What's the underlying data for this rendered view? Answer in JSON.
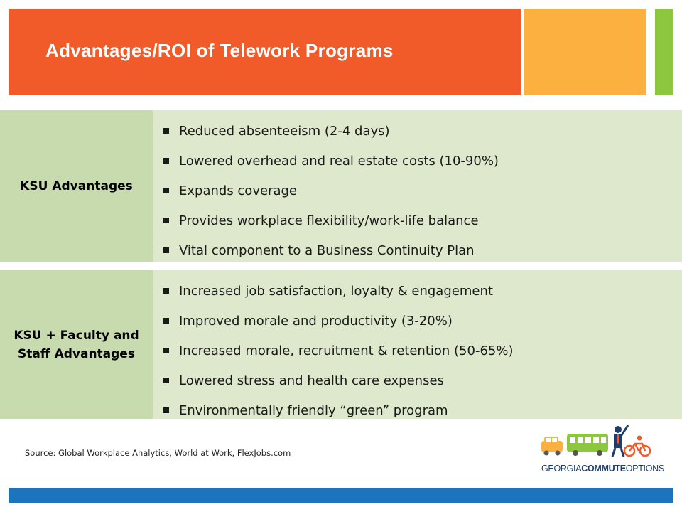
{
  "slide": {
    "title": "Advantages/ROI of Telework Programs",
    "colors": {
      "orange": "#f15a29",
      "yellow": "#fbb040",
      "green": "#8dc63f",
      "blue": "#1c75bc",
      "label_bg": "#c8dbae",
      "content_bg": "#dde8cc"
    }
  },
  "rows": [
    {
      "label": "KSU Advantages",
      "bullets": [
        "Reduced absenteeism (2-4 days)",
        "Lowered overhead and real estate costs (10-90%)",
        "Expands coverage",
        "Provides workplace flexibility/work-life balance",
        "Vital component to a Business Continuity Plan"
      ]
    },
    {
      "label": "KSU + Faculty and\nStaff Advantages",
      "bullets": [
        "Increased job satisfaction, loyalty & engagement",
        "Improved morale and productivity (3-20%)",
        "Increased morale, recruitment & retention (50-65%)",
        "Lowered stress and health care expenses",
        "Environmentally friendly “green” program"
      ]
    }
  ],
  "source": "Source: Global Workplace Analytics, World at Work, FlexJobs.com",
  "logo": {
    "text_part1": "GEORGIA",
    "text_part2": "COMMUTE",
    "text_part3": "OPTIONS"
  }
}
